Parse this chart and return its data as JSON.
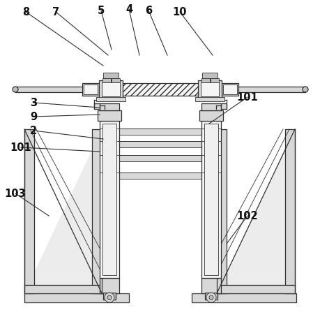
{
  "background_color": "#ffffff",
  "line_color": "#303030",
  "fill_light": "#e8e8e8",
  "fill_mid": "#d8d8d8",
  "fill_dark": "#c0c0c0",
  "fill_white": "#f5f5f5"
}
